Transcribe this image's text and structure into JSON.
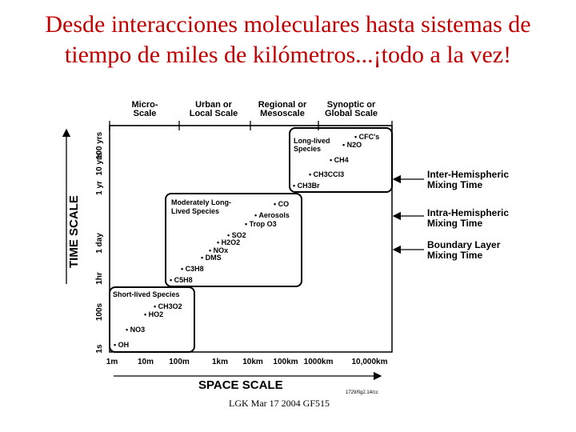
{
  "slide": {
    "title_line1": "Desde interacciones moleculares hasta sistemas de",
    "title_line2": "tiempo de miles de kilómetros...¡todo a la vez!",
    "footer": "LGK Mar 17 2004 GF515"
  },
  "diagram": {
    "scale_headers": [
      {
        "line1": "Micro-",
        "line2": "Scale"
      },
      {
        "line1": "Urban or",
        "line2": "Local Scale"
      },
      {
        "line1": "Regional or",
        "line2": "Mesoscale"
      },
      {
        "line1": "Synoptic or",
        "line2": "Global Scale"
      }
    ],
    "groups": {
      "long_lived": {
        "label1": "Long-lived",
        "label2": "Species",
        "species": [
          "CFC's",
          "N2O",
          "CH4",
          "CH3CCl3",
          "CH3Br"
        ]
      },
      "moderately": {
        "label1": "Moderately Long-",
        "label2": "Lived Species",
        "species": [
          "CO",
          "Aerosols",
          "Trop O3",
          "SO2",
          "H2O2",
          "NOx",
          "DMS",
          "C3H8",
          "C5H8"
        ]
      },
      "short_lived": {
        "label": "Short-lived Species",
        "species": [
          "CH3O2",
          "HO2",
          "NO3",
          "OH"
        ]
      }
    },
    "mixing_times": [
      {
        "line1": "Inter-Hemispheric",
        "line2": "Mixing Time"
      },
      {
        "line1": "Intra-Hemispheric",
        "line2": "Mixing Time"
      },
      {
        "line1": "Boundary Layer",
        "line2": "Mixing Time"
      }
    ],
    "time_axis": {
      "label": "TIME SCALE",
      "ticks": [
        "100 yrs",
        "10 yrs",
        "1 yr",
        "1 day",
        "1hr",
        "100s",
        "1s"
      ]
    },
    "space_axis": {
      "label": "SPACE SCALE",
      "ticks": [
        "1m",
        "10m",
        "100m",
        "1km",
        "10km",
        "100km",
        "1000km",
        "10,000km"
      ]
    },
    "figure_ref": "1729/fig2.14/cc"
  }
}
